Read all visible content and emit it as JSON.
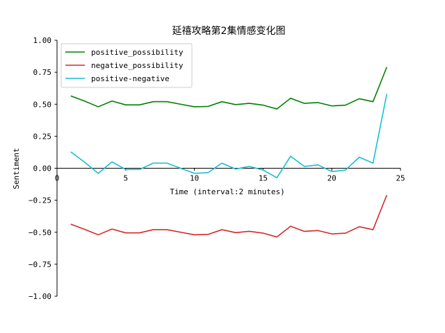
{
  "chart_data": {
    "type": "line",
    "title": "延禧攻略第2集情感变化图",
    "xlabel": "Time (interval:2 minutes)",
    "ylabel": "Sentiment",
    "xlim": [
      0,
      25
    ],
    "ylim": [
      -1.0,
      1.0
    ],
    "xticks": [
      0,
      5,
      10,
      15,
      20,
      25
    ],
    "yticks": [
      1.0,
      0.75,
      0.5,
      0.25,
      0.0,
      -0.25,
      -0.5,
      -0.75,
      -1.0
    ],
    "xtick_labels": [
      "0",
      "5",
      "10",
      "15",
      "20",
      "25"
    ],
    "ytick_labels": [
      "1.00",
      "0.75",
      "0.50",
      "0.25",
      "0.00",
      "−0.25",
      "−0.50",
      "−0.75",
      "−1.00"
    ],
    "legend_position": "top-left",
    "grid": false,
    "x": [
      1,
      2,
      3,
      4,
      5,
      6,
      7,
      8,
      9,
      10,
      11,
      12,
      13,
      14,
      15,
      16,
      17,
      18,
      19,
      20,
      21,
      22,
      23,
      24
    ],
    "series": [
      {
        "name": "positive_possibility",
        "color": "#008000",
        "values": [
          0.565,
          0.525,
          0.48,
          0.525,
          0.495,
          0.495,
          0.52,
          0.52,
          0.5,
          0.48,
          0.483,
          0.52,
          0.497,
          0.507,
          0.493,
          0.463,
          0.547,
          0.507,
          0.513,
          0.487,
          0.493,
          0.543,
          0.52,
          0.79
        ]
      },
      {
        "name": "negative_possibility",
        "color": "#d62728",
        "values": [
          -0.437,
          -0.477,
          -0.52,
          -0.475,
          -0.505,
          -0.505,
          -0.48,
          -0.48,
          -0.5,
          -0.52,
          -0.517,
          -0.48,
          -0.503,
          -0.493,
          -0.507,
          -0.537,
          -0.453,
          -0.493,
          -0.487,
          -0.513,
          -0.507,
          -0.457,
          -0.48,
          -0.21
        ]
      },
      {
        "name": "positive-negative",
        "color": "#17becf",
        "values": [
          0.128,
          0.048,
          -0.04,
          0.05,
          -0.01,
          -0.01,
          0.04,
          0.04,
          0.0,
          -0.04,
          -0.034,
          0.04,
          -0.006,
          0.014,
          -0.014,
          -0.074,
          0.094,
          0.014,
          0.026,
          -0.026,
          -0.014,
          0.086,
          0.04,
          0.58
        ]
      }
    ]
  }
}
